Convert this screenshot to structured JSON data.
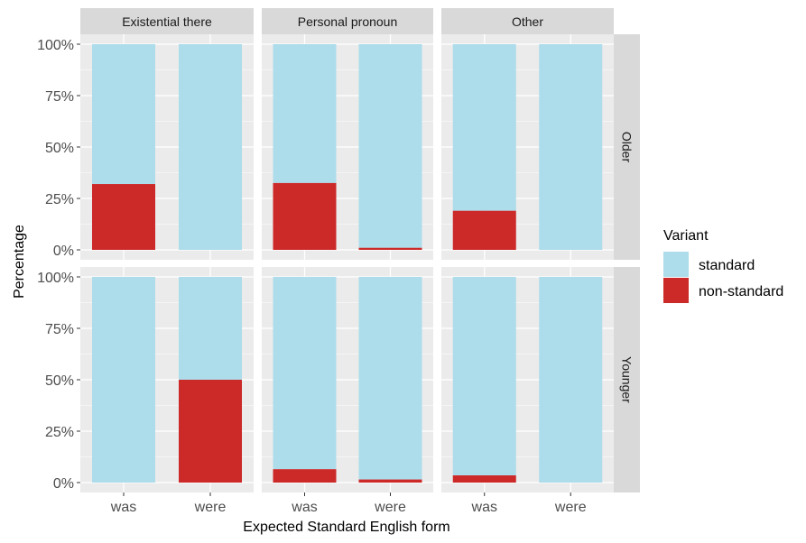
{
  "chart_data": {
    "type": "bar",
    "stacked": true,
    "xlabel": "Expected Standard English form",
    "ylabel": "Percentage",
    "ylim": [
      0,
      100
    ],
    "y_ticks": [
      "0%",
      "25%",
      "50%",
      "75%",
      "100%"
    ],
    "categories": [
      "was",
      "were"
    ],
    "column_facets": [
      "Existential there",
      "Personal pronoun",
      "Other"
    ],
    "row_facets": [
      "Older",
      "Younger"
    ],
    "legend": {
      "title": "Variant",
      "position": "right",
      "entries": [
        {
          "name": "standard",
          "color": "#ADDCEB"
        },
        {
          "name": "non-standard",
          "color": "#CC2929"
        }
      ]
    },
    "panel_background": "#EBEBEB",
    "strip_background": "#D9D9D9",
    "grid": true,
    "non_standard_percent": [
      {
        "row": "Older",
        "column": "Existential there",
        "values": [
          32,
          0
        ]
      },
      {
        "row": "Older",
        "column": "Personal pronoun",
        "values": [
          32.5,
          1
        ]
      },
      {
        "row": "Older",
        "column": "Other",
        "values": [
          19,
          0
        ]
      },
      {
        "row": "Younger",
        "column": "Existential there",
        "values": [
          0,
          50
        ]
      },
      {
        "row": "Younger",
        "column": "Personal pronoun",
        "values": [
          6.5,
          1.5
        ]
      },
      {
        "row": "Younger",
        "column": "Other",
        "values": [
          3.5,
          0
        ]
      }
    ]
  }
}
